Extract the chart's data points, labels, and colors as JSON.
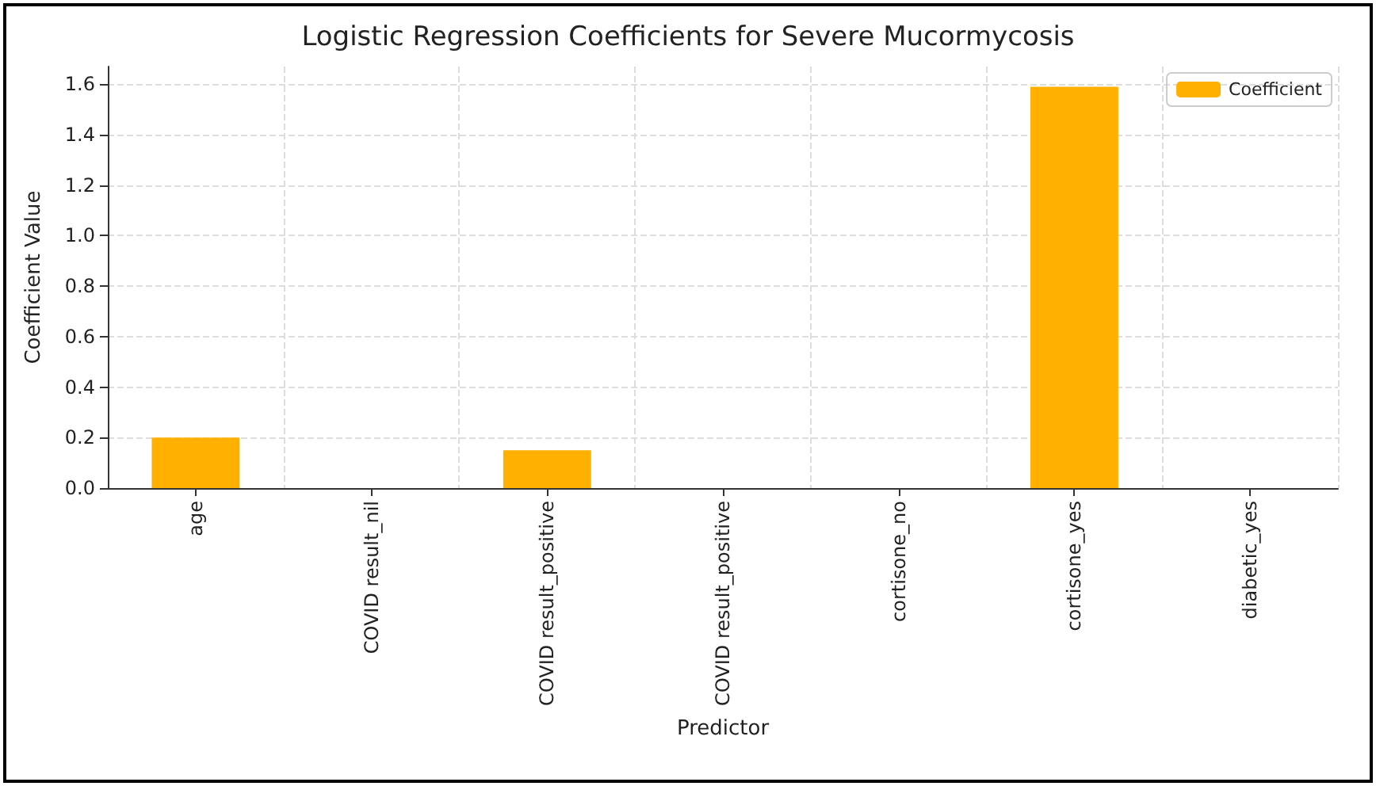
{
  "chart_data": {
    "type": "bar",
    "title": "Logistic Regression Coefficients for Severe Mucormycosis",
    "xlabel": "Predictor",
    "ylabel": "Coefficient Value",
    "categories": [
      "age",
      "COVID result_nil",
      "COVID result_positive",
      "COVID result_positive",
      "cortisone_no",
      "cortisone_yes",
      "diabetic_yes"
    ],
    "series": [
      {
        "name": "Coefficient",
        "color": "#ffb000",
        "values": [
          0.2,
          0,
          0.15,
          0,
          0,
          1.59,
          0
        ]
      }
    ],
    "ylim": [
      0,
      1.67
    ],
    "yticks": [
      {
        "value": 0,
        "label": "0.0"
      },
      {
        "value": 0.2,
        "label": "0.2"
      },
      {
        "value": 0.4,
        "label": "0.4"
      },
      {
        "value": 0.6,
        "label": "0.6"
      },
      {
        "value": 0.8,
        "label": "0.8"
      },
      {
        "value": 1.0,
        "label": "1.0"
      },
      {
        "value": 1.2,
        "label": "1.2"
      },
      {
        "value": 1.4,
        "label": "1.4"
      },
      {
        "value": 1.6,
        "label": "1.6"
      }
    ],
    "grid": true,
    "legend": "top right"
  }
}
